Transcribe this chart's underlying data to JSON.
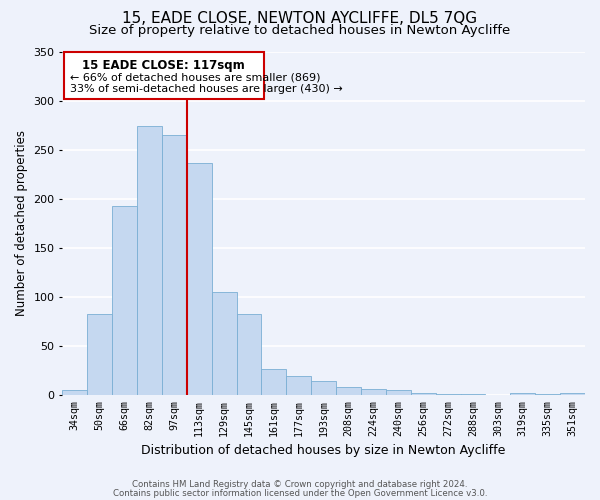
{
  "title": "15, EADE CLOSE, NEWTON AYCLIFFE, DL5 7QG",
  "subtitle": "Size of property relative to detached houses in Newton Aycliffe",
  "xlabel": "Distribution of detached houses by size in Newton Aycliffe",
  "ylabel": "Number of detached properties",
  "categories": [
    "34sqm",
    "50sqm",
    "66sqm",
    "82sqm",
    "97sqm",
    "113sqm",
    "129sqm",
    "145sqm",
    "161sqm",
    "177sqm",
    "193sqm",
    "208sqm",
    "224sqm",
    "240sqm",
    "256sqm",
    "272sqm",
    "288sqm",
    "303sqm",
    "319sqm",
    "335sqm",
    "351sqm"
  ],
  "bar_heights": [
    5,
    83,
    193,
    274,
    265,
    236,
    105,
    83,
    27,
    20,
    15,
    8,
    6,
    5,
    2,
    1,
    1,
    0,
    2,
    1,
    2
  ],
  "bar_color": "#c5d8f0",
  "bar_edge_color": "#7aafd4",
  "property_line_label": "15 EADE CLOSE: 117sqm",
  "annotation_line1": "← 66% of detached houses are smaller (869)",
  "annotation_line2": "33% of semi-detached houses are larger (430) →",
  "vline_color": "#cc0000",
  "box_edge_color": "#cc0000",
  "ylim": [
    0,
    350
  ],
  "yticks": [
    0,
    50,
    100,
    150,
    200,
    250,
    300,
    350
  ],
  "footer1": "Contains HM Land Registry data © Crown copyright and database right 2024.",
  "footer2": "Contains public sector information licensed under the Open Government Licence v3.0.",
  "bg_color": "#eef2fb",
  "grid_color": "#ffffff",
  "title_fontsize": 11,
  "subtitle_fontsize": 9.5
}
